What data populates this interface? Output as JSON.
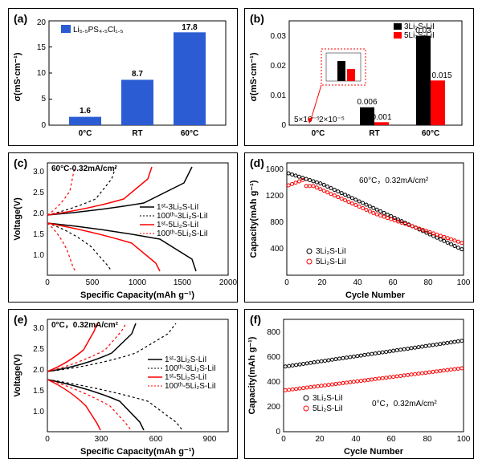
{
  "a": {
    "type": "bar",
    "categories": [
      "0°C",
      "RT",
      "60°C"
    ],
    "values": [
      1.6,
      8.7,
      17.8
    ],
    "color": "#2b5cd4",
    "ylabel": "σ(mS·cm⁻¹)",
    "ylim": [
      0,
      20
    ],
    "yticks": [
      0,
      5,
      10,
      15,
      20
    ],
    "legend": "Li₅.₅PS₄.₅Cl₁.₅",
    "valueLabels": [
      "1.6",
      "8.7",
      "17.8"
    ]
  },
  "b": {
    "type": "bar",
    "categories": [
      "0°C",
      "RT",
      "60°C"
    ],
    "series": [
      {
        "name": "3Li₂S-LiI",
        "color": "#000000",
        "values": [
          5e-05,
          0.006,
          0.03
        ]
      },
      {
        "name": "5Li₂S-LiI",
        "color": "#ff0000",
        "values": [
          2e-05,
          0.001,
          0.015
        ]
      }
    ],
    "ylabel": "σ(mS·cm⁻¹)",
    "ylim": [
      0,
      0.035
    ],
    "yticks": [
      0,
      0.01,
      0.02,
      0.03
    ],
    "valueLabels": [
      [
        "5×10⁻⁵",
        "0.006",
        "0.03"
      ],
      [
        "2×10⁻⁵",
        "0.001",
        "0.015"
      ]
    ],
    "insetBorder": "#ff0000"
  },
  "c": {
    "type": "line",
    "xlabel": "Specific Capacity(mAh g⁻¹)",
    "ylabel": "Voltage(V)",
    "xlim": [
      0,
      2000
    ],
    "ylim": [
      0.5,
      3.2
    ],
    "xticks": [
      0,
      500,
      1000,
      1500,
      2000
    ],
    "yticks": [
      1.0,
      1.5,
      2.0,
      2.5,
      3.0
    ],
    "condition": "60°C-0.32mA/cm²",
    "legend": [
      "1ˢᵗ-3Li₂S-LiI",
      "100ᵗʰ-3Li₂S-LiI",
      "1ˢᵗ-5Li₂S-LiI",
      "100ᵗʰ-5Li₂S-LiI"
    ],
    "colors": [
      "#000",
      "#000",
      "#ff0000",
      "#ff0000"
    ],
    "dashes": [
      "solid",
      "dashed",
      "solid",
      "dashed"
    ]
  },
  "d": {
    "type": "scatter",
    "xlabel": "Cycle Number",
    "ylabel": "Capacity(mAh g⁻¹)",
    "xlim": [
      0,
      100
    ],
    "ylim": [
      0,
      1700
    ],
    "xticks": [
      0,
      20,
      40,
      60,
      80,
      100
    ],
    "yticks": [
      400,
      800,
      1200,
      1600
    ],
    "condition": "60°C，0.32mA/cm²",
    "legend": [
      "3Li₂S-LiI",
      "5Li₂S-LiI"
    ],
    "colors": [
      "#000",
      "#ff0000"
    ]
  },
  "e": {
    "type": "line",
    "xlabel": "Specific Capacity(mAh g⁻¹)",
    "ylabel": "Voltage(V)",
    "xlim": [
      0,
      1000
    ],
    "ylim": [
      0.5,
      3.2
    ],
    "xticks": [
      0,
      300,
      600,
      900
    ],
    "yticks": [
      1.0,
      1.5,
      2.0,
      2.5,
      3.0
    ],
    "condition": "0°C，0.32mA/cm²",
    "legend": [
      "1ˢᵗ-3Li₂S-LiI",
      "100ᵗʰ-3Li₂S-LiI",
      "1ˢᵗ-5Li₂S-LiI",
      "100ᵗʰ-5Li₂S-LiI"
    ],
    "colors": [
      "#000",
      "#000",
      "#ff0000",
      "#ff0000"
    ],
    "dashes": [
      "solid",
      "dashed",
      "solid",
      "dashed"
    ]
  },
  "f": {
    "type": "scatter",
    "xlabel": "Cycle Number",
    "ylabel": "Capacity(mAh g⁻¹)",
    "xlim": [
      0,
      100
    ],
    "ylim": [
      0,
      900
    ],
    "xticks": [
      0,
      20,
      40,
      60,
      80,
      100
    ],
    "yticks": [
      0,
      200,
      400,
      600,
      800
    ],
    "condition": "0°C，0.32mA/cm²",
    "legend": [
      "3Li₂S-LiI",
      "5Li₂S-LiI"
    ],
    "colors": [
      "#000",
      "#ff0000"
    ]
  }
}
